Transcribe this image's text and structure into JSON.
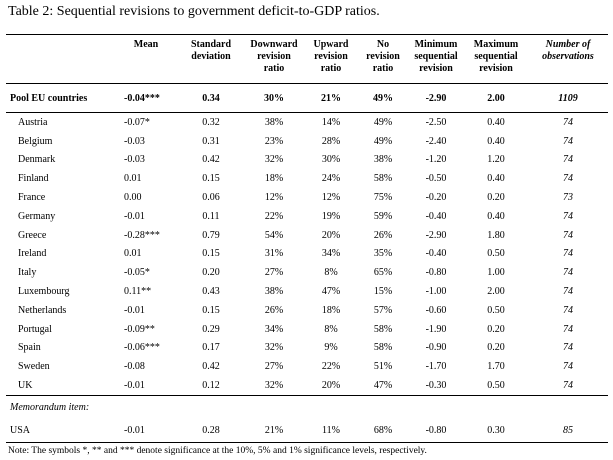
{
  "title": "Table 2: Sequential revisions to government deficit-to-GDP ratios.",
  "headers": {
    "mean": "Mean",
    "std": [
      "Standard",
      "deviation"
    ],
    "down": [
      "Downward",
      "revision",
      "ratio"
    ],
    "up": [
      "Upward",
      "revision",
      "ratio"
    ],
    "no": [
      "No",
      "revision",
      "ratio"
    ],
    "min": [
      "Minimum",
      "sequential",
      "revision"
    ],
    "max": [
      "Maximum",
      "sequential",
      "revision"
    ],
    "obs": [
      "Number of",
      "observations"
    ]
  },
  "pool": {
    "name": "Pool EU countries",
    "mean": "-0.04***",
    "std": "0.34",
    "down": "30%",
    "up": "21%",
    "no": "49%",
    "min": "-2.90",
    "max": "2.00",
    "obs": "1109"
  },
  "rows": [
    {
      "name": "Austria",
      "mean": "-0.07*",
      "std": "0.32",
      "down": "38%",
      "up": "14%",
      "no": "49%",
      "min": "-2.50",
      "max": "0.40",
      "obs": "74"
    },
    {
      "name": "Belgium",
      "mean": "-0.03",
      "std": "0.31",
      "down": "23%",
      "up": "28%",
      "no": "49%",
      "min": "-2.40",
      "max": "0.40",
      "obs": "74"
    },
    {
      "name": "Denmark",
      "mean": "-0.03",
      "std": "0.42",
      "down": "32%",
      "up": "30%",
      "no": "38%",
      "min": "-1.20",
      "max": "1.20",
      "obs": "74"
    },
    {
      "name": "Finland",
      "mean": "0.01",
      "std": "0.15",
      "down": "18%",
      "up": "24%",
      "no": "58%",
      "min": "-0.50",
      "max": "0.40",
      "obs": "74"
    },
    {
      "name": "France",
      "mean": "0.00",
      "std": "0.06",
      "down": "12%",
      "up": "12%",
      "no": "75%",
      "min": "-0.20",
      "max": "0.20",
      "obs": "73"
    },
    {
      "name": "Germany",
      "mean": "-0.01",
      "std": "0.11",
      "down": "22%",
      "up": "19%",
      "no": "59%",
      "min": "-0.40",
      "max": "0.40",
      "obs": "74"
    },
    {
      "name": "Greece",
      "mean": "-0.28***",
      "std": "0.79",
      "down": "54%",
      "up": "20%",
      "no": "26%",
      "min": "-2.90",
      "max": "1.80",
      "obs": "74"
    },
    {
      "name": "Ireland",
      "mean": "0.01",
      "std": "0.15",
      "down": "31%",
      "up": "34%",
      "no": "35%",
      "min": "-0.40",
      "max": "0.50",
      "obs": "74"
    },
    {
      "name": "Italy",
      "mean": "-0.05*",
      "std": "0.20",
      "down": "27%",
      "up": "8%",
      "no": "65%",
      "min": "-0.80",
      "max": "1.00",
      "obs": "74"
    },
    {
      "name": "Luxembourg",
      "mean": "0.11**",
      "std": "0.43",
      "down": "38%",
      "up": "47%",
      "no": "15%",
      "min": "-1.00",
      "max": "2.00",
      "obs": "74"
    },
    {
      "name": "Netherlands",
      "mean": "-0.01",
      "std": "0.15",
      "down": "26%",
      "up": "18%",
      "no": "57%",
      "min": "-0.60",
      "max": "0.50",
      "obs": "74"
    },
    {
      "name": "Portugal",
      "mean": "-0.09**",
      "std": "0.29",
      "down": "34%",
      "up": "8%",
      "no": "58%",
      "min": "-1.90",
      "max": "0.20",
      "obs": "74"
    },
    {
      "name": "Spain",
      "mean": "-0.06***",
      "std": "0.17",
      "down": "32%",
      "up": "9%",
      "no": "58%",
      "min": "-0.90",
      "max": "0.20",
      "obs": "74"
    },
    {
      "name": "Sweden",
      "mean": "-0.08",
      "std": "0.42",
      "down": "27%",
      "up": "22%",
      "no": "51%",
      "min": "-1.70",
      "max": "1.70",
      "obs": "74"
    },
    {
      "name": "UK",
      "mean": "-0.01",
      "std": "0.12",
      "down": "32%",
      "up": "20%",
      "no": "47%",
      "min": "-0.30",
      "max": "0.50",
      "obs": "74"
    }
  ],
  "memo_label": "Memorandum item:",
  "usa": {
    "name": "USA",
    "mean": "-0.01",
    "std": "0.28",
    "down": "21%",
    "up": "11%",
    "no": "68%",
    "min": "-0.80",
    "max": "0.30",
    "obs": "85"
  },
  "note": "Note: The symbols *, ** and *** denote significance at the 10%, 5% and 1% significance levels, respectively."
}
